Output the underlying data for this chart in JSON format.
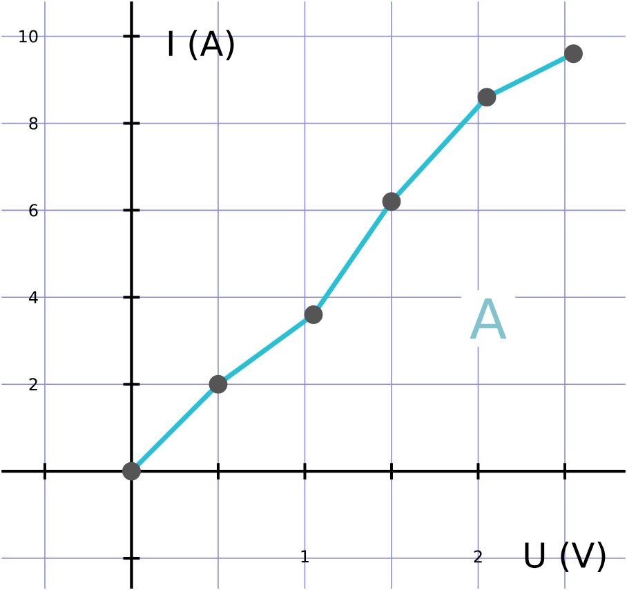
{
  "chart_data": {
    "type": "line",
    "xlabel": "U (V)",
    "ylabel": "I (A)",
    "x": [
      0,
      0.5,
      1.05,
      1.5,
      2.05,
      2.55
    ],
    "series": [
      {
        "color": "#29c0d6",
        "values": [
          0,
          2,
          3.6,
          6.2,
          8.6,
          9.6
        ]
      }
    ],
    "marker": "circle",
    "line_style": "solid",
    "grid": true,
    "xlim": [
      -0.75,
      2.85
    ],
    "ylim": [
      -2.7,
      10.8
    ],
    "xticks": [
      {
        "value": -0.5,
        "label": null
      },
      {
        "value": 0.5,
        "label": null
      },
      1,
      {
        "value": 1.5,
        "label": null
      },
      2,
      {
        "value": 2.5,
        "label": null
      }
    ],
    "yticks": [
      {
        "value": -2,
        "label": null
      },
      2,
      4,
      6,
      8,
      10
    ],
    "annotations": [
      "A"
    ]
  }
}
